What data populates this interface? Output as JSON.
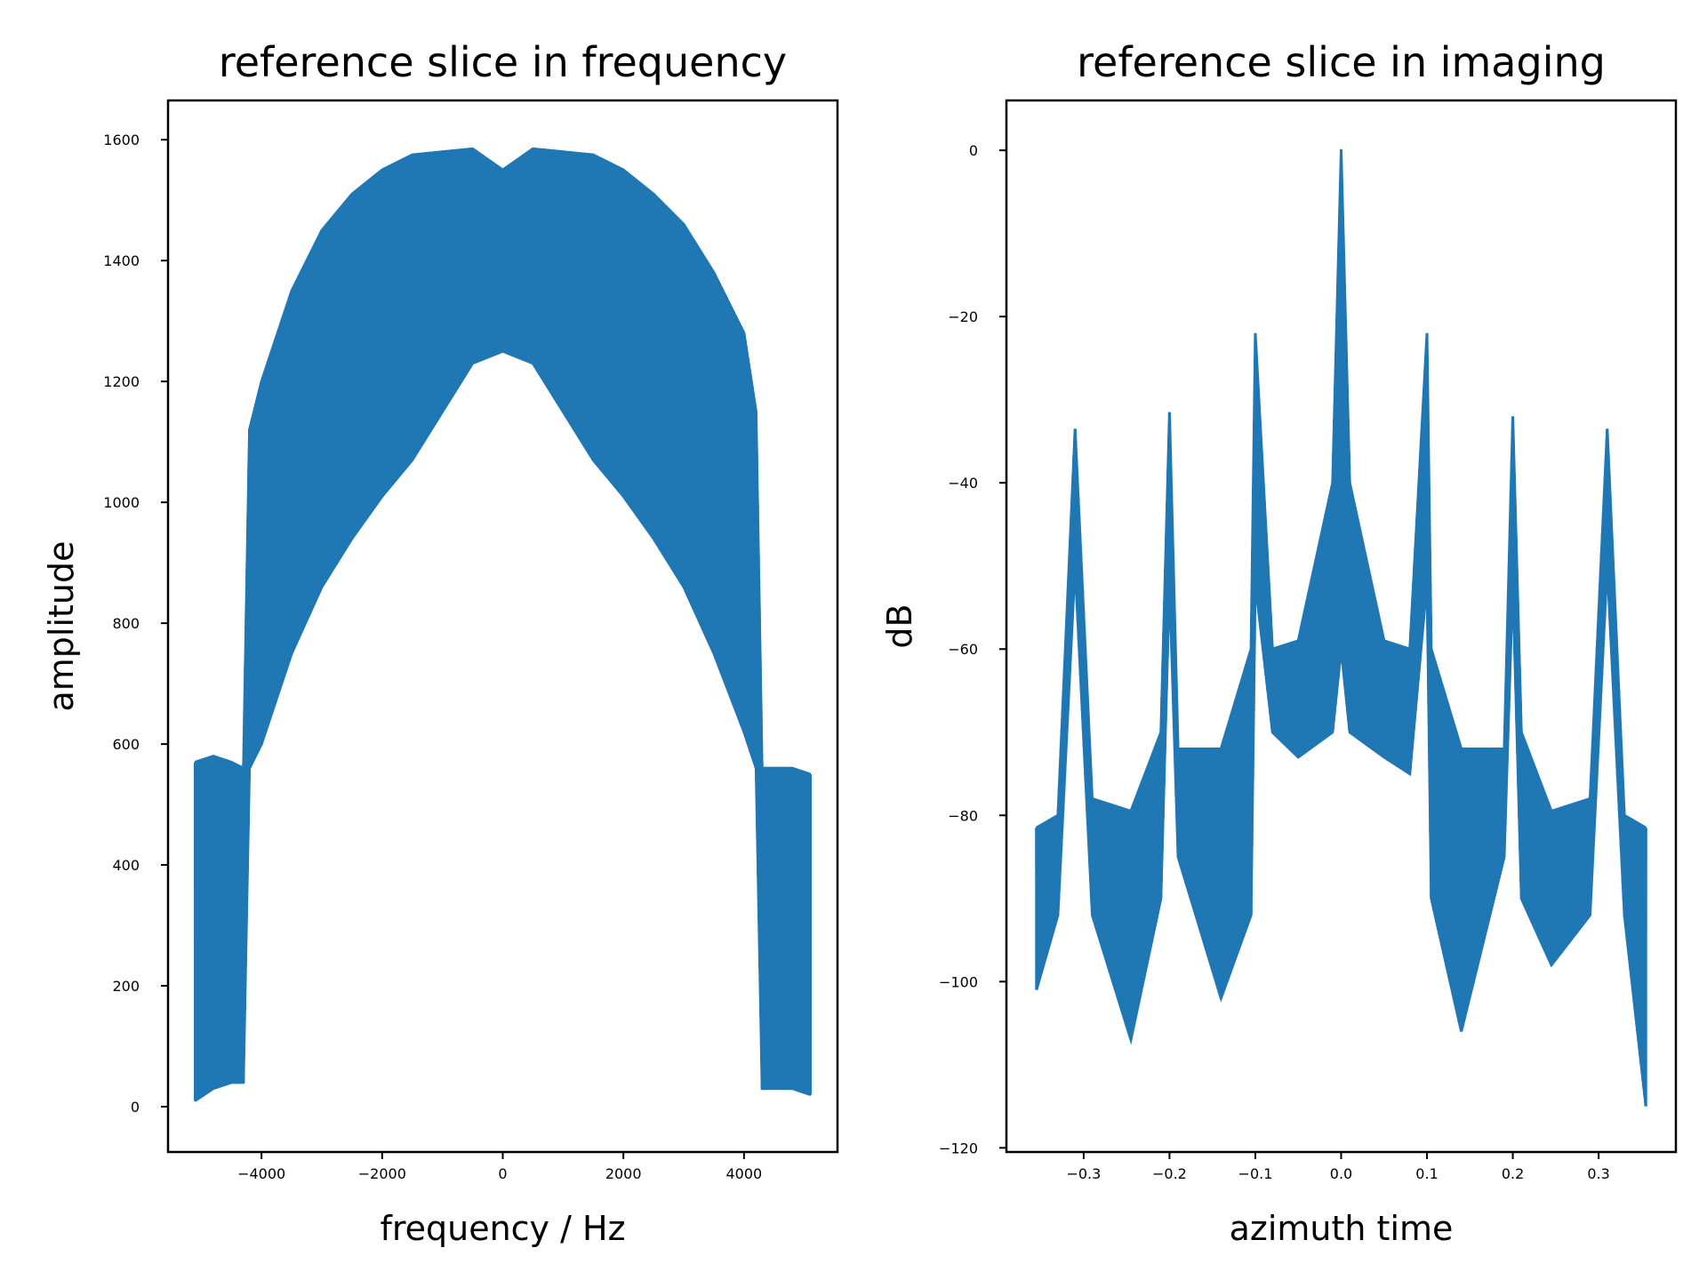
{
  "chart_data": [
    {
      "type": "line",
      "title": "reference slice in frequency",
      "xlabel": "frequency / Hz",
      "ylabel": "amplitude",
      "xlim": [
        -5550,
        5550
      ],
      "ylim": [
        -75,
        1665
      ],
      "xticks": [
        -4000,
        -2000,
        0,
        2000,
        4000
      ],
      "xtick_labels": [
        "−4000",
        "−2000",
        "0",
        "2000",
        "4000"
      ],
      "yticks": [
        0,
        200,
        400,
        600,
        800,
        1000,
        1200,
        1400,
        1600
      ],
      "ytick_labels": [
        "0",
        "200",
        "400",
        "600",
        "800",
        "1000",
        "1200",
        "1400",
        "1600"
      ],
      "color": "#1f77b4",
      "series": [
        {
          "x": [
            -5100,
            -4800,
            -4500,
            -4300,
            -4200,
            -4000,
            -3500,
            -3000,
            -2500,
            -2000,
            -1500,
            -1000,
            -500,
            0,
            500,
            1000,
            1500,
            2000,
            2500,
            3000,
            3500,
            4000,
            4200,
            4300,
            4500,
            4800,
            5100
          ],
          "upper": [
            570,
            580,
            570,
            560,
            1120,
            1200,
            1350,
            1450,
            1510,
            1550,
            1575,
            1580,
            1585,
            1550,
            1585,
            1580,
            1575,
            1550,
            1510,
            1460,
            1380,
            1280,
            1150,
            560,
            560,
            560,
            550
          ],
          "lower": [
            10,
            30,
            40,
            40,
            560,
            600,
            750,
            860,
            940,
            1010,
            1070,
            1150,
            1230,
            1250,
            1230,
            1150,
            1070,
            1010,
            940,
            860,
            750,
            620,
            560,
            30,
            30,
            30,
            20
          ]
        }
      ]
    },
    {
      "type": "line",
      "title": "reference slice in imaging",
      "xlabel": "azimuth time",
      "ylabel": "dB",
      "xlim": [
        -0.39,
        0.39
      ],
      "ylim": [
        -120.5,
        6
      ],
      "xticks": [
        -0.3,
        -0.2,
        -0.1,
        0.0,
        0.1,
        0.2,
        0.3
      ],
      "xtick_labels": [
        "−0.3",
        "−0.2",
        "−0.1",
        "0.0",
        "0.1",
        "0.2",
        "0.3"
      ],
      "yticks": [
        0,
        -20,
        -40,
        -60,
        -80,
        -100,
        -120
      ],
      "ytick_labels": [
        "0",
        "−20",
        "−40",
        "−60",
        "−80",
        "−100",
        "−120"
      ],
      "color": "#1f77b4",
      "series": [
        {
          "x": [
            -0.355,
            -0.33,
            -0.31,
            -0.29,
            -0.245,
            -0.21,
            -0.2,
            -0.19,
            -0.14,
            -0.105,
            -0.1,
            -0.08,
            -0.05,
            -0.01,
            0.0,
            0.01,
            0.05,
            0.08,
            0.1,
            0.105,
            0.14,
            0.19,
            0.2,
            0.21,
            0.245,
            0.29,
            0.31,
            0.33,
            0.355
          ],
          "upper": [
            -81.5,
            -80,
            -33.5,
            -78,
            -79.5,
            -70,
            -31.5,
            -72,
            -72,
            -60,
            -22,
            -60,
            -59,
            -40,
            0,
            -40,
            -59,
            -60,
            -22,
            -60,
            -72,
            -72,
            -32,
            -70,
            -79.5,
            -78,
            -33.5,
            -80,
            -81.5
          ],
          "lower": [
            -101,
            -92,
            -50,
            -92,
            -107,
            -90,
            -52,
            -85,
            -102,
            -92,
            -52,
            -70,
            -73,
            -70,
            -60,
            -70,
            -73,
            -75,
            -52,
            -90,
            -106,
            -85,
            -52,
            -90,
            -98,
            -92,
            -50,
            -92,
            -115
          ]
        }
      ]
    }
  ]
}
